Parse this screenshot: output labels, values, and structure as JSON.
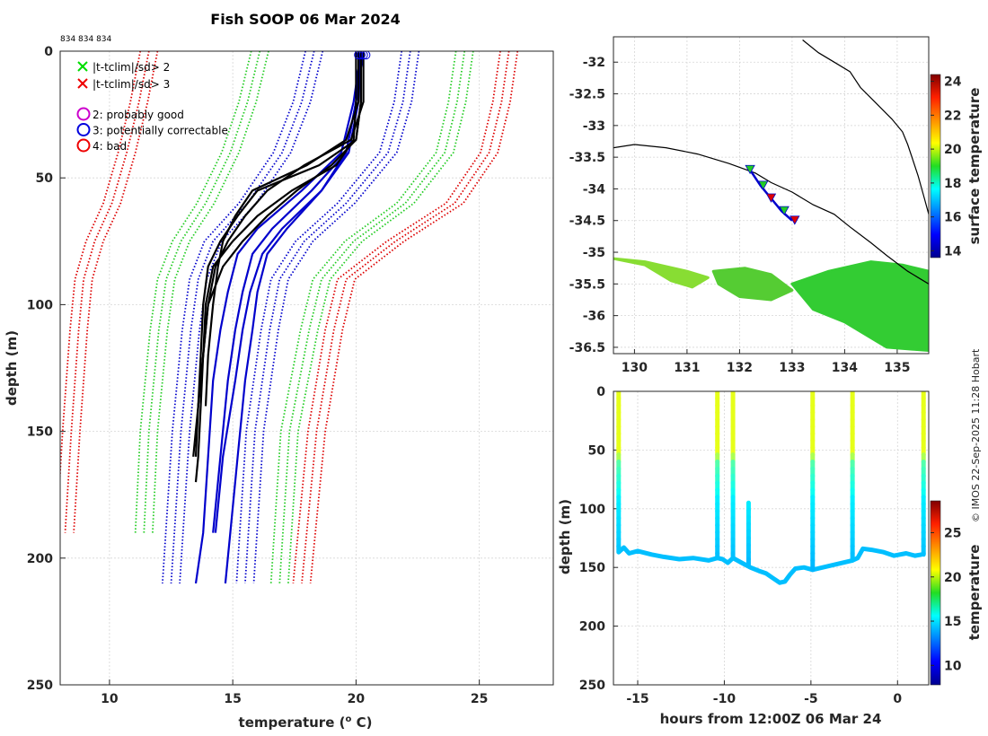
{
  "chart_data": [
    {
      "type": "line",
      "title": "Fish SOOP 06 Mar 2024",
      "id_label": "834 834 834",
      "xlabel": "temperature",
      "xlabel_unit_pre": "(",
      "xlabel_unit_sup": "o",
      "xlabel_unit_post": " C)",
      "ylabel": "depth (m)",
      "xlim": [
        8,
        28
      ],
      "ylim": [
        250,
        0
      ],
      "xticks": [
        10,
        15,
        20,
        25
      ],
      "yticks": [
        0,
        50,
        100,
        150,
        200,
        250
      ],
      "legend": {
        "x_items": [
          {
            "label": "|t-tclim|/sd> 2",
            "color": "#00dd00"
          },
          {
            "label": "|t-tclim|/sd> 3",
            "color": "#ee0000"
          }
        ],
        "o_items": [
          {
            "label": "2: probably good",
            "color": "#cc00cc"
          },
          {
            "label": "3: potentially correctable",
            "color": "#0000dd"
          },
          {
            "label": "4: bad",
            "color": "#ee0000"
          }
        ]
      },
      "envelopes": [
        {
          "name": "clim -3sd",
          "color": "#dd0000",
          "style": "dotted",
          "depth": [
            0,
            20,
            40,
            60,
            75,
            90,
            110,
            150,
            190
          ],
          "temp": [
            11.6,
            11.2,
            10.7,
            10.1,
            9.4,
            8.95,
            8.75,
            8.45,
            8.2
          ]
        },
        {
          "name": "clim -2sd",
          "color": "#22cc22",
          "style": "dotted",
          "depth": [
            0,
            20,
            40,
            60,
            75,
            90,
            110,
            150,
            190
          ],
          "temp": [
            16.1,
            15.6,
            14.9,
            13.9,
            12.9,
            12.3,
            12.0,
            11.6,
            11.4
          ]
        },
        {
          "name": "clim -1sd",
          "color": "#0000cc",
          "style": "dotted",
          "depth": [
            0,
            20,
            40,
            60,
            75,
            90,
            110,
            150,
            210
          ],
          "temp": [
            18.3,
            17.8,
            17.0,
            15.6,
            14.2,
            13.6,
            13.3,
            12.9,
            12.5
          ]
        },
        {
          "name": "clim +1sd",
          "color": "#0000cc",
          "style": "dotted",
          "depth": [
            0,
            20,
            40,
            60,
            75,
            90,
            110,
            150,
            210
          ],
          "temp": [
            22.2,
            21.9,
            21.3,
            19.6,
            17.9,
            16.9,
            16.5,
            15.9,
            15.5
          ]
        },
        {
          "name": "clim +2sd",
          "color": "#22cc22",
          "style": "dotted",
          "depth": [
            0,
            20,
            40,
            60,
            75,
            90,
            110,
            150,
            210
          ],
          "temp": [
            24.4,
            24.1,
            23.6,
            22.0,
            19.9,
            18.6,
            18.1,
            17.3,
            16.9
          ]
        },
        {
          "name": "clim +3sd",
          "color": "#dd0000",
          "style": "dotted",
          "depth": [
            0,
            20,
            40,
            60,
            75,
            90,
            110,
            150,
            210
          ],
          "temp": [
            26.2,
            25.9,
            25.4,
            24.0,
            21.6,
            19.6,
            19.1,
            18.4,
            17.8
          ]
        }
      ],
      "climatology": {
        "color": "#0000cc",
        "depth": [
          0,
          20,
          40,
          55,
          70,
          80,
          95,
          110,
          130,
          160,
          190,
          210
        ],
        "temp": [
          [
            20.2,
            19.9,
            19.4,
            17.8,
            16.0,
            15.2,
            14.8,
            14.5,
            14.2,
            14.0,
            13.8,
            13.5
          ],
          [
            20.3,
            20.0,
            19.6,
            18.2,
            16.6,
            15.8,
            15.4,
            15.1,
            14.8,
            14.5,
            14.2,
            null
          ],
          [
            20.2,
            20.1,
            19.7,
            18.6,
            17.2,
            16.4,
            16.0,
            15.8,
            15.5,
            15.2,
            14.9,
            14.7
          ],
          [
            20.2,
            20.0,
            19.6,
            18.6,
            17.0,
            16.2,
            15.7,
            15.4,
            15.1,
            14.6,
            14.3,
            null
          ]
        ]
      },
      "profiles": {
        "color": "#000000",
        "depth": [
          0,
          20,
          35,
          45,
          55,
          65,
          75,
          85,
          100,
          120,
          140,
          160,
          170
        ],
        "temp": [
          [
            20.0,
            20.0,
            19.9,
            19.2,
            17.4,
            16.0,
            15.0,
            14.2,
            13.9,
            13.8,
            13.7,
            13.6,
            13.5
          ],
          [
            20.2,
            20.2,
            20.0,
            19.0,
            17.6,
            16.4,
            15.4,
            14.6,
            14.0,
            13.8,
            13.6,
            13.5,
            null
          ],
          [
            20.3,
            20.3,
            19.8,
            17.9,
            16.4,
            15.5,
            14.8,
            14.3,
            14.0,
            13.8,
            13.6,
            null,
            null
          ],
          [
            20.2,
            20.2,
            20.0,
            18.5,
            16.0,
            15.2,
            14.5,
            14.0,
            13.8,
            13.7,
            13.6,
            13.4,
            null
          ],
          [
            20.1,
            20.1,
            19.6,
            18.0,
            15.8,
            15.1,
            14.6,
            14.4,
            14.2,
            14.0,
            13.9,
            null,
            null
          ]
        ]
      },
      "surface_markers_temp": [
        20.1,
        20.2,
        20.3,
        20.4
      ]
    },
    {
      "type": "heatmap",
      "xlim": [
        129.6,
        135.6
      ],
      "ylim": [
        -36.6,
        -31.6
      ],
      "xticks": [
        130,
        131,
        132,
        133,
        134,
        135
      ],
      "yticks": [
        -32,
        -32.5,
        -33,
        -33.5,
        -34,
        -34.5,
        -35,
        -35.5,
        -36,
        -36.5
      ],
      "colorbar_label": "surface temperature",
      "colorbar_ticks": [
        14,
        16,
        18,
        20,
        22,
        24
      ],
      "colorbar_range": [
        13.6,
        24.4
      ],
      "coastline": {
        "lon": [
          129.6,
          130.0,
          130.6,
          131.2,
          131.8,
          132.3,
          132.6,
          133.0,
          133.4,
          133.8,
          134.1,
          134.5,
          134.8,
          135.2,
          135.4,
          135.6
        ],
        "lat": [
          -33.35,
          -33.3,
          -33.35,
          -33.45,
          -33.6,
          -33.75,
          -33.9,
          -34.05,
          -34.25,
          -34.4,
          -34.6,
          -34.85,
          -35.05,
          -35.3,
          -35.4,
          -35.5
        ]
      },
      "peninsula": {
        "lon": [
          133.2,
          133.5,
          133.8,
          134.1,
          134.3,
          134.6,
          134.9,
          135.1,
          135.2,
          135.3,
          135.4,
          135.5,
          135.6
        ],
        "lat": [
          -31.65,
          -31.85,
          -32.0,
          -32.15,
          -32.4,
          -32.65,
          -32.9,
          -33.1,
          -33.3,
          -33.55,
          -33.8,
          -34.1,
          -34.4
        ]
      },
      "track": {
        "lon": [
          132.2,
          132.4,
          132.6,
          132.8,
          133.0
        ],
        "lat": [
          -33.7,
          -33.95,
          -34.15,
          -34.35,
          -34.5
        ]
      },
      "flags": [
        {
          "lon": 132.2,
          "lat": -33.7,
          "color": "#22cc22"
        },
        {
          "lon": 132.45,
          "lat": -33.95,
          "color": "#22cc22"
        },
        {
          "lon": 132.6,
          "lat": -34.15,
          "color": "#dd0000"
        },
        {
          "lon": 132.85,
          "lat": -34.35,
          "color": "#22cc22"
        },
        {
          "lon": 133.05,
          "lat": -34.5,
          "color": "#dd0000"
        }
      ],
      "sst_patches": [
        {
          "lon": [
            129.6,
            130.2,
            130.7,
            131.1,
            131.4,
            131.0,
            130.2
          ],
          "lat": [
            -35.1,
            -35.2,
            -35.45,
            -35.55,
            -35.4,
            -35.3,
            -35.15
          ],
          "color": "#88dd33"
        },
        {
          "lon": [
            131.5,
            132.1,
            132.6,
            133.0,
            132.6,
            132.0,
            131.6
          ],
          "lat": [
            -35.3,
            -35.25,
            -35.35,
            -35.6,
            -35.75,
            -35.7,
            -35.5
          ],
          "color": "#55cc33"
        },
        {
          "lon": [
            133.0,
            133.7,
            134.5,
            135.1,
            135.6,
            135.6,
            134.8,
            134.0,
            133.4
          ],
          "lat": [
            -35.5,
            -35.3,
            -35.15,
            -35.2,
            -35.3,
            -36.55,
            -36.5,
            -36.1,
            -35.9
          ],
          "color": "#33cc33"
        }
      ]
    },
    {
      "type": "scatter",
      "xlabel": "hours from 12:00Z 06 Mar 24",
      "ylabel": "depth (m)",
      "xlim": [
        -16.4,
        1.8
      ],
      "ylim": [
        250,
        0
      ],
      "xticks": [
        -15,
        -10,
        -5,
        0
      ],
      "yticks": [
        0,
        50,
        100,
        150,
        200,
        250
      ],
      "colorbar_label": "temperature",
      "colorbar_ticks": [
        10,
        15,
        20,
        25
      ],
      "colorbar_range": [
        7.8,
        28.6
      ],
      "bottom_trace": {
        "hours": [
          -16.1,
          -15.8,
          -15.5,
          -15.0,
          -14.2,
          -13.5,
          -12.6,
          -11.8,
          -10.9,
          -10.4,
          -10.1,
          -9.8,
          -9.5,
          -9.0,
          -8.5,
          -8.0,
          -7.6,
          -7.2,
          -6.8,
          -6.5,
          -6.2,
          -5.9,
          -5.4,
          -4.9,
          -2.6,
          -2.3,
          -2.0,
          -1.5,
          -0.8,
          -0.2,
          0.5,
          1.0,
          1.4
        ],
        "depth": [
          137,
          133,
          138,
          136,
          139,
          141,
          143,
          142,
          144,
          142,
          143,
          146,
          142,
          146,
          150,
          153,
          155,
          159,
          163,
          162,
          156,
          151,
          150,
          152,
          144,
          142,
          134,
          135,
          137,
          140,
          138,
          140,
          139
        ]
      },
      "casts": [
        {
          "hours": -16.1,
          "top": 0,
          "bottom": 137
        },
        {
          "hours": -10.4,
          "top": 0,
          "bottom": 142
        },
        {
          "hours": -9.5,
          "top": 0,
          "bottom": 142
        },
        {
          "hours": -8.6,
          "top": 95,
          "bottom": 148
        },
        {
          "hours": -4.9,
          "top": 0,
          "bottom": 152
        },
        {
          "hours": -2.6,
          "top": 0,
          "bottom": 144
        },
        {
          "hours": 1.5,
          "top": 0,
          "bottom": 139
        }
      ]
    }
  ],
  "credit": "© IMOS 22-Sep-2025 11:28 Hobart"
}
